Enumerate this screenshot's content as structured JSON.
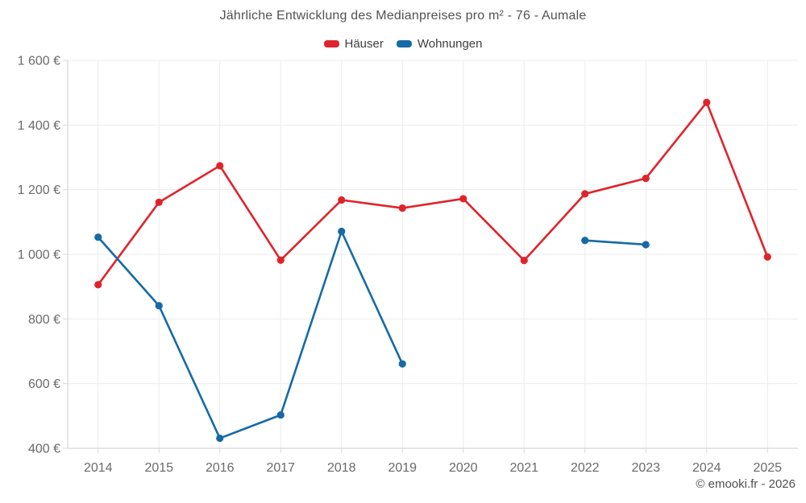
{
  "chart_data": {
    "type": "line",
    "title": "Jährliche Entwicklung des Medianpreises pro m² - 76 - Aumale",
    "attribution": "© emooki.fr - 2026",
    "categories": [
      "2014",
      "2015",
      "2016",
      "2017",
      "2018",
      "2019",
      "2020",
      "2021",
      "2022",
      "2023",
      "2024",
      "2025"
    ],
    "series": [
      {
        "name": "Häuser",
        "color": "#df232b",
        "values": [
          906,
          1161,
          1274,
          982,
          1168,
          1143,
          1172,
          981,
          1187,
          1235,
          1470,
          992
        ]
      },
      {
        "name": "Wohnungen",
        "color": "#166aa5",
        "values": [
          1053,
          841,
          431,
          503,
          1071,
          661,
          null,
          null,
          1043,
          1030,
          null,
          null
        ]
      }
    ],
    "xlabel": "",
    "ylabel": "",
    "ylim": [
      400,
      1600
    ],
    "ytick_step": 200,
    "ytick_suffix": "€",
    "grid": true,
    "legend_position": "top",
    "unit": "EUR pro m²"
  },
  "colors": {
    "grid": "#ececec",
    "axis": "#cccccc",
    "tick": "#d9d9d9",
    "axis_label": "#6a6a6a"
  }
}
